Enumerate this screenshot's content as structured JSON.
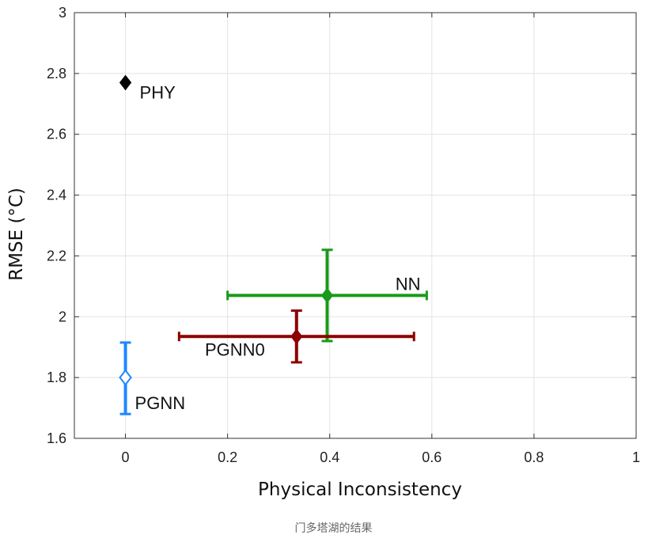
{
  "chart_data": {
    "type": "scatter",
    "xlabel": "Physical Inconsistency",
    "ylabel": "RMSE (°C)",
    "xlim": [
      -0.1,
      1.0
    ],
    "ylim": [
      1.6,
      3.0
    ],
    "xticks": [
      0,
      0.2,
      0.4,
      0.6,
      0.8,
      1
    ],
    "xtick_labels": [
      "0",
      "0.2",
      "0.4",
      "0.6",
      "0.8",
      "1"
    ],
    "yticks": [
      1.6,
      1.8,
      2.0,
      2.2,
      2.4,
      2.6,
      2.8,
      3.0
    ],
    "ytick_labels": [
      "1.6",
      "1.8",
      "2",
      "2.2",
      "2.4",
      "2.6",
      "2.8",
      "3"
    ],
    "grid": true,
    "series": [
      {
        "label": "PHY",
        "x": 0.0,
        "y": 2.77,
        "color": "#000000",
        "marker": "diamond-filled"
      },
      {
        "label": "NN",
        "x": 0.395,
        "y": 2.07,
        "x_err": [
          0.2,
          0.59
        ],
        "y_err": [
          1.92,
          2.22
        ],
        "color": "#1a9a1a",
        "marker": "diamond-filled"
      },
      {
        "label": "PGNN0",
        "x": 0.335,
        "y": 1.935,
        "x_err": [
          0.105,
          0.565
        ],
        "y_err": [
          1.85,
          2.02
        ],
        "color": "#8b0000",
        "marker": "diamond-filled"
      },
      {
        "label": "PGNN",
        "x": 0.0,
        "y": 1.8,
        "y_err": [
          1.68,
          1.915
        ],
        "color": "#1e88ff",
        "marker": "diamond-open"
      }
    ]
  },
  "caption": "门多塔湖的结果"
}
